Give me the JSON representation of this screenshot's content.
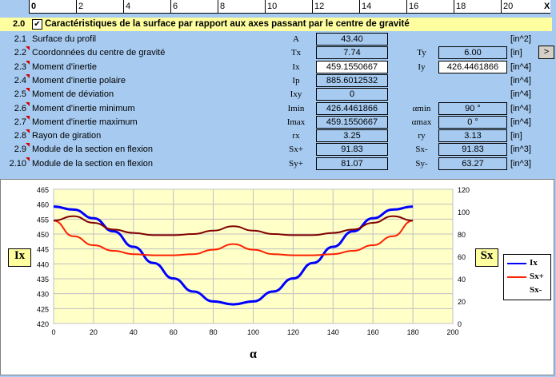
{
  "ruler": {
    "ticks": [
      "0",
      "2",
      "4",
      "6",
      "8",
      "10",
      "12",
      "14",
      "16",
      "18",
      "20"
    ],
    "end_label": "X"
  },
  "section": {
    "number": "2.0",
    "checkbox": "✔",
    "title": "Caractéristiques de la surface par rapport aux axes passant par le centre de gravité"
  },
  "rows": [
    {
      "num": "2.1",
      "label": "Surface du profil",
      "sym": "A",
      "val": "43.40",
      "sym2": "",
      "val2": "",
      "unit": "[in^2]",
      "white1": false,
      "white2": false,
      "box2": false
    },
    {
      "num": "2.2",
      "label": "Coordonnées du centre de gravité",
      "sym": "Tx",
      "val": "7.74",
      "sym2": "Ty",
      "val2": "6.00",
      "unit": "[in]",
      "white1": false,
      "white2": false,
      "box2": true
    },
    {
      "num": "2.3",
      "label": "Moment d'inertie",
      "sym": "Ix",
      "val": "459.1550667",
      "sym2": "Iy",
      "val2": "426.4461866",
      "unit": "[in^4]",
      "white1": true,
      "white2": true,
      "box2": true
    },
    {
      "num": "2.4",
      "label": "Moment d'inertie polaire",
      "sym": "Ip",
      "val": "885.6012532",
      "sym2": "",
      "val2": "",
      "unit": "[in^4]",
      "white1": false,
      "white2": false,
      "box2": false
    },
    {
      "num": "2.5",
      "label": "Moment de déviation",
      "sym": "Ixy",
      "val": "0",
      "sym2": "",
      "val2": "",
      "unit": "[in^4]",
      "white1": false,
      "white2": false,
      "box2": false
    },
    {
      "num": "2.6",
      "label": "Moment d'inertie minimum",
      "sym": "Imin",
      "val": "426.4461866",
      "sym2": "αmin",
      "val2": "90 °",
      "unit": "[in^4]",
      "white1": false,
      "white2": false,
      "box2": true
    },
    {
      "num": "2.7",
      "label": "Moment d'inertie maximum",
      "sym": "Imax",
      "val": "459.1550667",
      "sym2": "αmax",
      "val2": "0 °",
      "unit": "[in^4]",
      "white1": false,
      "white2": false,
      "box2": true
    },
    {
      "num": "2.8",
      "label": "Rayon de giration",
      "sym": "rx",
      "val": "3.25",
      "sym2": "ry",
      "val2": "3.13",
      "unit": "[in]",
      "white1": false,
      "white2": false,
      "box2": true
    },
    {
      "num": "2.9",
      "label": "Module de la section en flexion",
      "sym": "Sx+",
      "val": "91.83",
      "sym2": "Sx-",
      "val2": "91.83",
      "unit": "[in^3]",
      "white1": false,
      "white2": false,
      "box2": true
    },
    {
      "num": "2.10",
      "label": "Module de la section en flexion",
      "sym": "Sy+",
      "val": "81.07",
      "sym2": "Sy-",
      "val2": "63.27",
      "unit": "[in^3]",
      "white1": false,
      "white2": false,
      "box2": true
    }
  ],
  "nav": {
    "next_label": ">"
  },
  "chart_data": {
    "type": "line",
    "xlabel": "α",
    "ylabel_left": "Ix",
    "ylabel_right": "Sx",
    "xlim": [
      0,
      200
    ],
    "xticks": [
      0,
      20,
      40,
      60,
      80,
      100,
      120,
      140,
      160,
      180,
      200
    ],
    "ylim_left": [
      420,
      465
    ],
    "yticks_left": [
      420,
      425,
      430,
      435,
      440,
      445,
      450,
      455,
      460,
      465
    ],
    "ylim_right": [
      0,
      120
    ],
    "yticks_right": [
      0,
      20,
      40,
      60,
      80,
      100,
      120
    ],
    "legend_position": "right",
    "grid": true,
    "series": [
      {
        "name": "Ix",
        "axis": "left",
        "color": "#0000ff",
        "x": [
          0,
          10,
          20,
          30,
          40,
          50,
          60,
          70,
          80,
          90,
          100,
          110,
          120,
          130,
          140,
          150,
          160,
          170,
          180
        ],
        "y": [
          459.2,
          458.2,
          455.3,
          450.9,
          445.7,
          440.3,
          435.1,
          430.7,
          427.4,
          426.4,
          427.4,
          430.7,
          435.1,
          440.3,
          445.7,
          450.9,
          455.3,
          458.2,
          459.2
        ]
      },
      {
        "name": "Sx+",
        "axis": "right",
        "color": "#ff2000",
        "x": [
          0,
          10,
          20,
          30,
          40,
          50,
          60,
          70,
          80,
          90,
          100,
          110,
          120,
          130,
          140,
          150,
          160,
          170,
          180
        ],
        "y": [
          92,
          78,
          70,
          65,
          62,
          61,
          61,
          62,
          66,
          71,
          66,
          62,
          61,
          61,
          62,
          65,
          70,
          78,
          92
        ]
      },
      {
        "name": "Sx-",
        "axis": "right",
        "color": "#800000",
        "x": [
          0,
          10,
          20,
          30,
          40,
          50,
          60,
          70,
          80,
          90,
          100,
          110,
          120,
          130,
          140,
          150,
          160,
          170,
          180
        ],
        "y": [
          92,
          96,
          90,
          84,
          81,
          79,
          79,
          80,
          83,
          87,
          83,
          80,
          79,
          79,
          81,
          84,
          90,
          96,
          92
        ]
      }
    ]
  }
}
